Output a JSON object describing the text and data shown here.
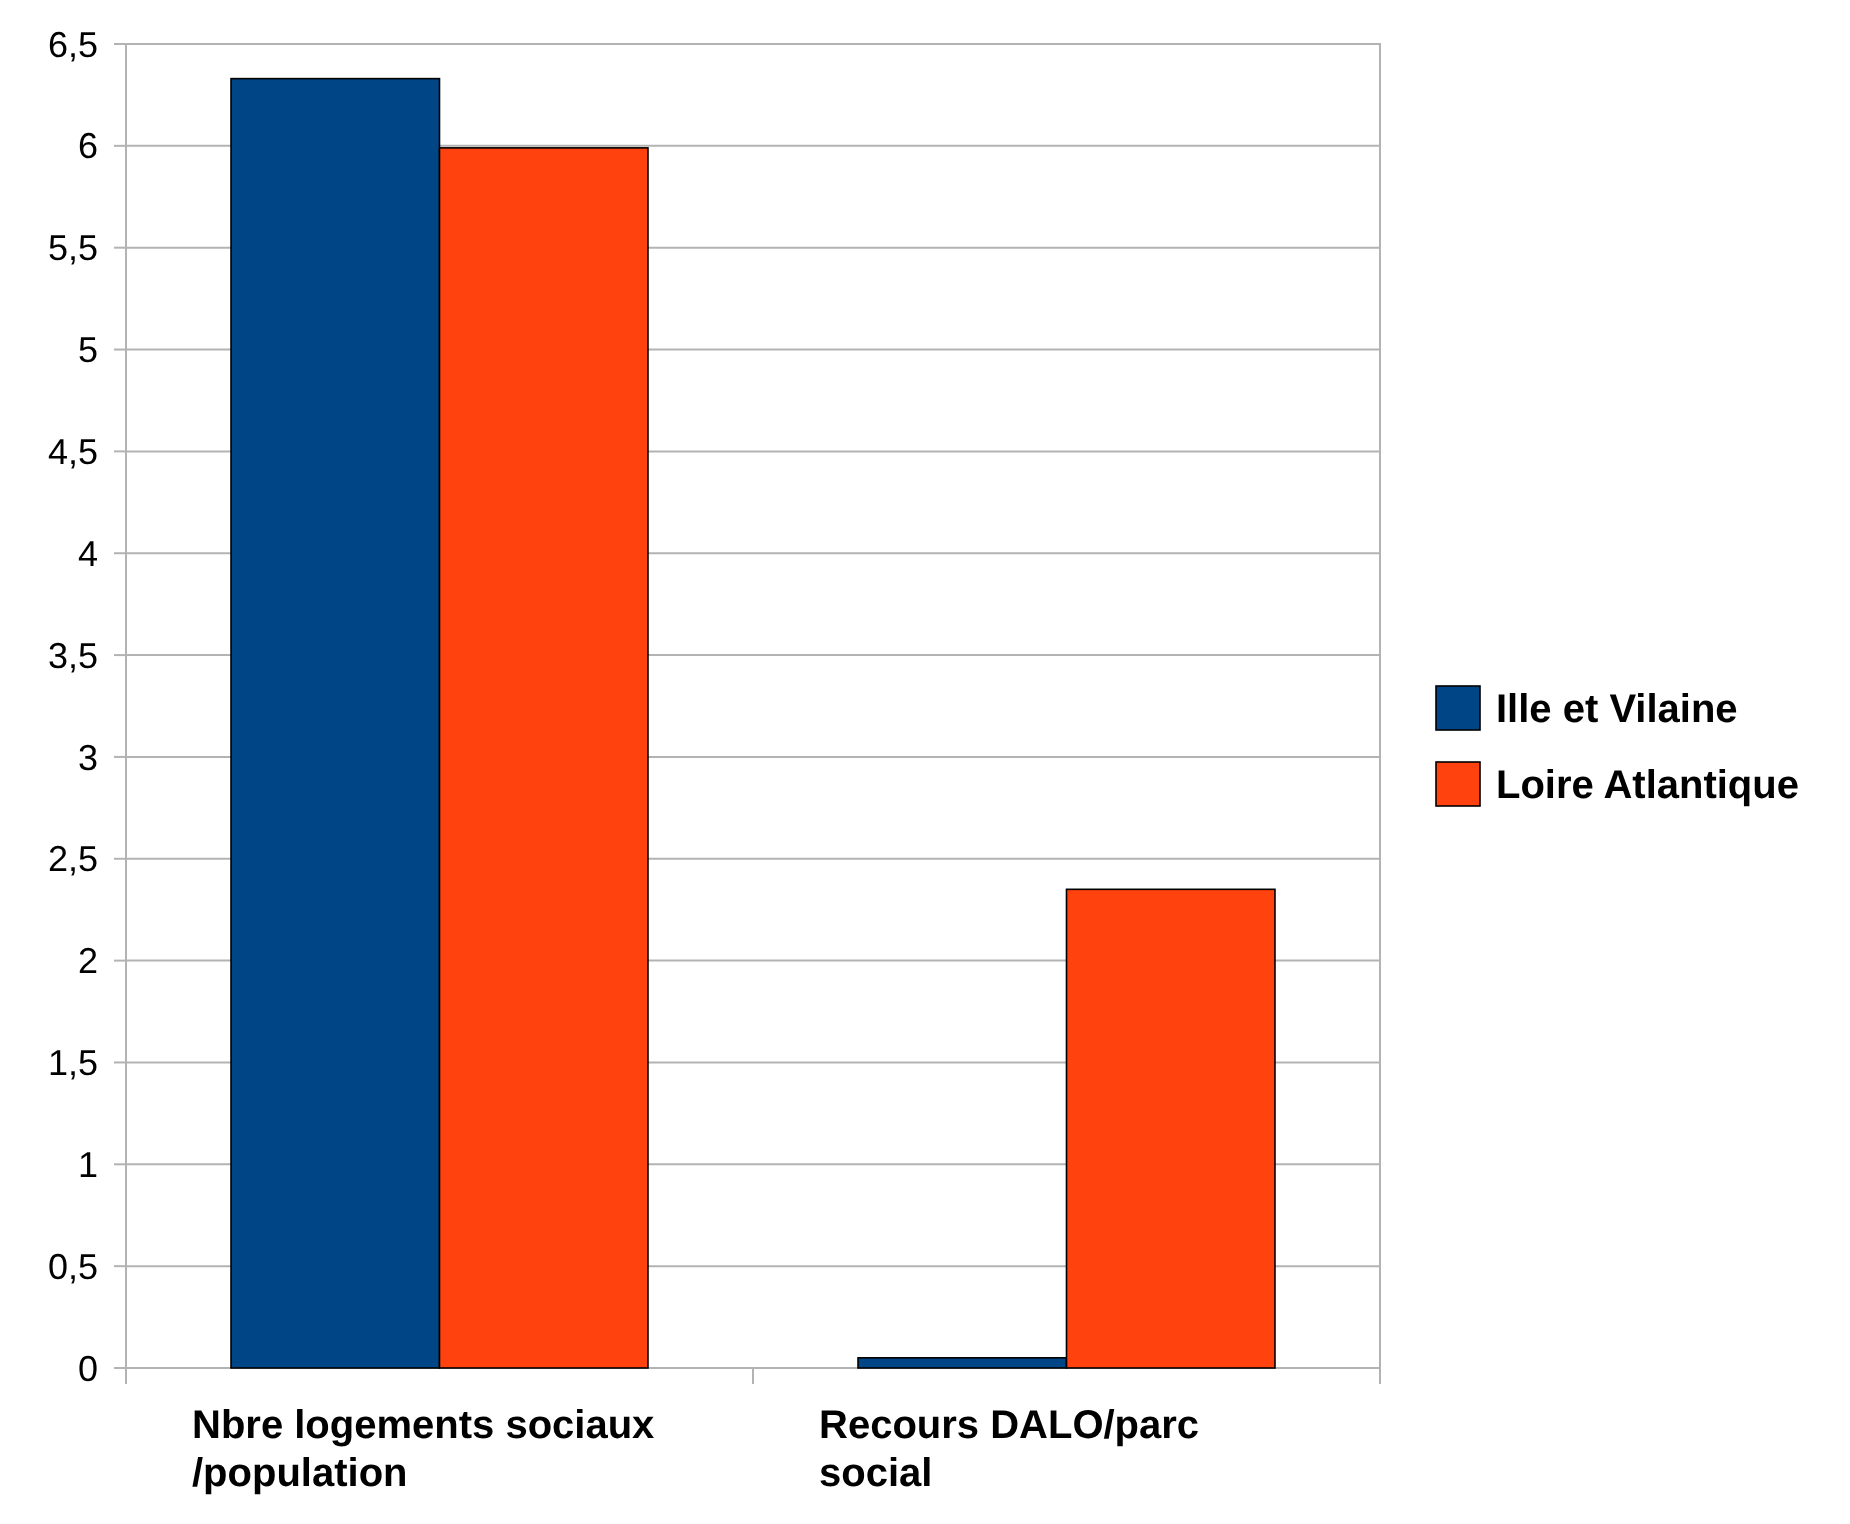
{
  "chart_data": {
    "type": "bar",
    "categories": [
      "Nbre logements sociaux /population",
      "Recours DALO/parc social"
    ],
    "series": [
      {
        "name": "Ille et Vilaine",
        "color": "#004586",
        "values": [
          6.33,
          0.05
        ]
      },
      {
        "name": "Loire Atlantique",
        "color": "#ff420e",
        "values": [
          5.99,
          2.35
        ]
      }
    ],
    "ylim": [
      0,
      6.5
    ],
    "yticks": [
      0,
      {
        "value": 0.5,
        "label": "0,5"
      },
      1,
      {
        "value": 1.5,
        "label": "1,5"
      },
      2,
      {
        "value": 2.5,
        "label": "2,5"
      },
      3,
      {
        "value": 3.5,
        "label": "3,5"
      },
      4,
      {
        "value": 4.5,
        "label": "4,5"
      },
      5,
      {
        "value": 5.5,
        "label": "5,5"
      },
      6,
      {
        "value": 6.5,
        "label": "6,5"
      }
    ],
    "grid": "y",
    "legend": "right"
  }
}
